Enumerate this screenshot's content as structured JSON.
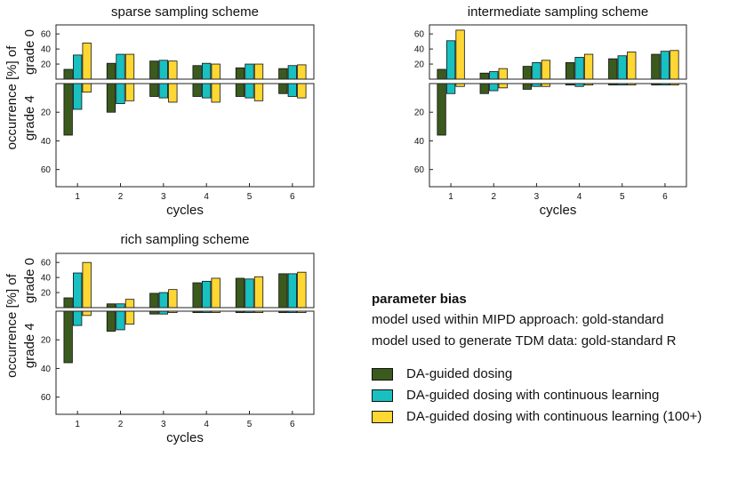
{
  "colors": {
    "series": [
      "#3b5a1e",
      "#19c0c0",
      "#ffd733"
    ],
    "edge": "#111111",
    "axis": "#222222"
  },
  "chart_data": [
    {
      "type": "bar",
      "title": "sparse sampling scheme",
      "xlabel": "cycles",
      "ylabel_top": "grade 0",
      "ylabel_bottom": "grade 4",
      "ylabel_outer": "occurrence [%] of",
      "categories": [
        "1",
        "2",
        "3",
        "4",
        "5",
        "6"
      ],
      "top": {
        "ylim": [
          0,
          72
        ],
        "ticks": [
          "20",
          "40",
          "60"
        ],
        "series": [
          {
            "values": [
              13,
              21,
              24,
              18,
              15,
              14
            ]
          },
          {
            "values": [
              32,
              33,
              25,
              21,
              20,
              18
            ]
          },
          {
            "values": [
              48,
              33,
              24,
              20,
              20,
              19
            ]
          }
        ]
      },
      "bottom": {
        "ylim": [
          0,
          72
        ],
        "ticks": [
          "20",
          "40",
          "60"
        ],
        "series": [
          {
            "values": [
              36,
              20,
              9,
              9,
              9,
              7
            ]
          },
          {
            "values": [
              18,
              14,
              10,
              10,
              10,
              9
            ]
          },
          {
            "values": [
              6,
              12,
              13,
              13,
              12,
              10
            ]
          }
        ]
      }
    },
    {
      "type": "bar",
      "title": "intermediate sampling scheme",
      "xlabel": "cycles",
      "categories": [
        "1",
        "2",
        "3",
        "4",
        "5",
        "6"
      ],
      "top": {
        "ylim": [
          0,
          72
        ],
        "ticks": [
          "20",
          "40",
          "60"
        ],
        "series": [
          {
            "values": [
              13,
              8,
              17,
              22,
              27,
              33
            ]
          },
          {
            "values": [
              51,
              10,
              22,
              29,
              31,
              37
            ]
          },
          {
            "values": [
              65,
              14,
              25,
              33,
              36,
              38
            ]
          }
        ]
      },
      "bottom": {
        "ylim": [
          0,
          72
        ],
        "ticks": [
          "20",
          "40",
          "60"
        ],
        "series": [
          {
            "values": [
              36,
              7,
              4,
              1,
              1,
              1
            ]
          },
          {
            "values": [
              7,
              5,
              2,
              2,
              1,
              1
            ]
          },
          {
            "values": [
              2,
              3,
              2,
              1,
              1,
              1
            ]
          }
        ]
      }
    },
    {
      "type": "bar",
      "title": "rich sampling scheme",
      "xlabel": "cycles",
      "ylabel_top": "grade 0",
      "ylabel_bottom": "grade 4",
      "ylabel_outer": "occurrence [%] of",
      "categories": [
        "1",
        "2",
        "3",
        "4",
        "5",
        "6"
      ],
      "top": {
        "ylim": [
          0,
          72
        ],
        "ticks": [
          "20",
          "40",
          "60"
        ],
        "series": [
          {
            "values": [
              13,
              5,
              19,
              33,
              39,
              45
            ]
          },
          {
            "values": [
              46,
              5,
              20,
              35,
              38,
              45
            ]
          },
          {
            "values": [
              60,
              11,
              24,
              39,
              41,
              47
            ]
          }
        ]
      },
      "bottom": {
        "ylim": [
          0,
          72
        ],
        "ticks": [
          "20",
          "40",
          "60"
        ],
        "series": [
          {
            "values": [
              36,
              14,
              2,
              1,
              1,
              1
            ]
          },
          {
            "values": [
              10,
              13,
              2,
              1,
              1,
              1
            ]
          },
          {
            "values": [
              3,
              9,
              1,
              1,
              1,
              1
            ]
          }
        ]
      }
    }
  ],
  "legend": {
    "title": "parameter bias",
    "line1": "model used within MIPD approach: gold-standard",
    "line2": "model used to generate TDM data: gold-standard R",
    "entries": [
      "DA-guided dosing",
      "DA-guided dosing with continuous learning",
      "DA-guided dosing with continuous learning (100+)"
    ]
  }
}
